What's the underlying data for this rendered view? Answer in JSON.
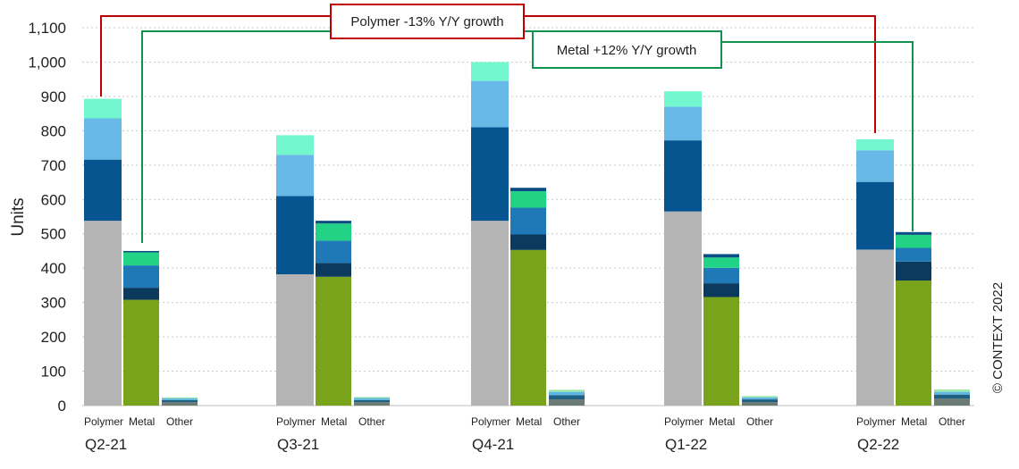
{
  "chart_data": {
    "type": "bar",
    "stacked": true,
    "ylabel": "Units",
    "ylim": [
      0,
      1100
    ],
    "yticks": [
      "0",
      "100",
      "200",
      "300",
      "400",
      "500",
      "600",
      "700",
      "800",
      "900",
      "1,000",
      "1,100"
    ],
    "grid": true,
    "quarters": [
      "Q2-21",
      "Q3-21",
      "Q4-21",
      "Q1-22",
      "Q2-22"
    ],
    "sub_categories": [
      "Polymer",
      "Metal",
      "Other"
    ],
    "stacks": {
      "Polymer": [
        [
          538,
          178,
          120,
          57
        ],
        [
          382,
          228,
          120,
          57
        ],
        [
          538,
          272,
          135,
          55
        ],
        [
          565,
          207,
          98,
          45
        ],
        [
          454,
          197,
          92,
          32
        ]
      ],
      "Metal": [
        [
          308,
          35,
          65,
          38,
          4
        ],
        [
          375,
          40,
          65,
          50,
          8
        ],
        [
          453,
          45,
          78,
          48,
          10
        ],
        [
          316,
          40,
          45,
          30,
          10
        ],
        [
          364,
          55,
          40,
          38,
          8
        ]
      ],
      "Other": [
        [
          10,
          6,
          5,
          3
        ],
        [
          10,
          6,
          6,
          3
        ],
        [
          18,
          12,
          10,
          6
        ],
        [
          10,
          8,
          6,
          4
        ],
        [
          20,
          12,
          8,
          7
        ]
      ]
    },
    "colors": {
      "Polymer": [
        "#b4b4b4",
        "#075590",
        "#68b8e8",
        "#72f7cf"
      ],
      "Metal": [
        "#7aa31c",
        "#0b3a5e",
        "#1f79b7",
        "#22d386",
        "#0b4e86"
      ],
      "Other": [
        "#6b7a73",
        "#1f5f82",
        "#5fb6e0",
        "#9be8a8"
      ]
    },
    "annotations": [
      {
        "text": "Polymer -13% Y/Y growth",
        "color": "#c00000"
      },
      {
        "text": "Metal +12% Y/Y growth",
        "color": "#10914f"
      }
    ],
    "copyright": "© CONTEXT 2022"
  }
}
